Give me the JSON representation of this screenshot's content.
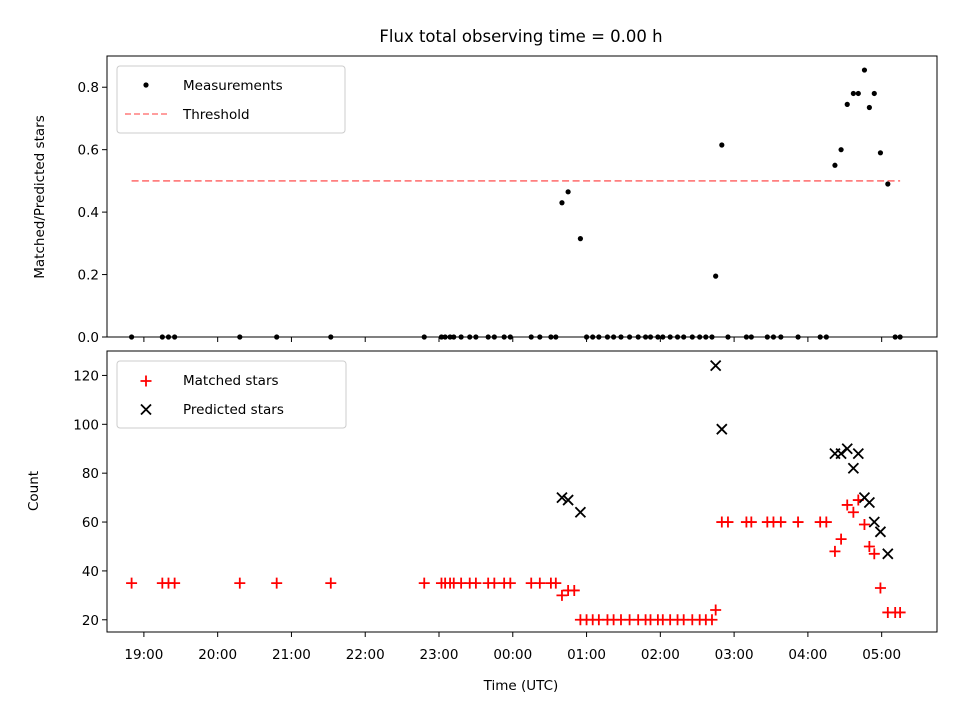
{
  "title": "Flux total observing time = 0.00 h",
  "colors": {
    "measurement": "#000000",
    "threshold": "#ff7f7f",
    "matched": "#ff0000",
    "predicted": "#000000"
  },
  "chart_data": [
    {
      "type": "scatter",
      "ylabel": "Matched/Predicted stars",
      "ylim": [
        0,
        0.9
      ],
      "yticks": [
        0.0,
        0.2,
        0.4,
        0.6,
        0.8
      ],
      "ytick_labels": [
        "0.0",
        "0.2",
        "0.4",
        "0.6",
        "0.8"
      ],
      "legend": {
        "location": "upper left",
        "entries": [
          "Measurements",
          "Threshold"
        ]
      },
      "threshold": {
        "value": 0.5,
        "x_start": "18:50",
        "x_end": "05:15"
      },
      "series": [
        {
          "name": "Measurements",
          "points": [
            [
              "18:50",
              0
            ],
            [
              "19:15",
              0
            ],
            [
              "19:20",
              0
            ],
            [
              "19:25",
              0
            ],
            [
              "20:18",
              0
            ],
            [
              "20:48",
              0
            ],
            [
              "21:32",
              0
            ],
            [
              "22:48",
              0
            ],
            [
              "23:02",
              0
            ],
            [
              "23:05",
              0
            ],
            [
              "23:09",
              0
            ],
            [
              "23:12",
              0
            ],
            [
              "23:18",
              0
            ],
            [
              "23:25",
              0
            ],
            [
              "23:30",
              0
            ],
            [
              "23:40",
              0
            ],
            [
              "23:45",
              0
            ],
            [
              "23:53",
              0
            ],
            [
              "23:58",
              0
            ],
            [
              "00:15",
              0
            ],
            [
              "00:22",
              0
            ],
            [
              "00:31",
              0
            ],
            [
              "00:35",
              0
            ],
            [
              "00:40",
              0.43
            ],
            [
              "00:45",
              0.465
            ],
            [
              "00:55",
              0.315
            ],
            [
              "01:00",
              0
            ],
            [
              "01:05",
              0
            ],
            [
              "01:10",
              0
            ],
            [
              "01:17",
              0
            ],
            [
              "01:22",
              0
            ],
            [
              "01:28",
              0
            ],
            [
              "01:35",
              0
            ],
            [
              "01:42",
              0
            ],
            [
              "01:48",
              0
            ],
            [
              "01:52",
              0
            ],
            [
              "01:58",
              0
            ],
            [
              "02:02",
              0
            ],
            [
              "02:08",
              0
            ],
            [
              "02:14",
              0
            ],
            [
              "02:19",
              0
            ],
            [
              "02:26",
              0
            ],
            [
              "02:32",
              0
            ],
            [
              "02:37",
              0
            ],
            [
              "02:42",
              0
            ],
            [
              "02:45",
              0.195
            ],
            [
              "02:50",
              0.615
            ],
            [
              "02:55",
              0
            ],
            [
              "03:10",
              0
            ],
            [
              "03:14",
              0
            ],
            [
              "03:27",
              0
            ],
            [
              "03:32",
              0
            ],
            [
              "03:38",
              0
            ],
            [
              "03:52",
              0
            ],
            [
              "04:10",
              0
            ],
            [
              "04:15",
              0
            ],
            [
              "04:22",
              0.55
            ],
            [
              "04:27",
              0.6
            ],
            [
              "04:32",
              0.745
            ],
            [
              "04:37",
              0.78
            ],
            [
              "04:41",
              0.78
            ],
            [
              "04:46",
              0.855
            ],
            [
              "04:50",
              0.735
            ],
            [
              "04:54",
              0.78
            ],
            [
              "04:59",
              0.59
            ],
            [
              "05:05",
              0.49
            ],
            [
              "05:11",
              0
            ],
            [
              "05:15",
              0
            ]
          ]
        }
      ]
    },
    {
      "type": "scatter",
      "xlabel": "Time (UTC)",
      "ylabel": "Count",
      "ylim": [
        15,
        130
      ],
      "yticks": [
        20,
        40,
        60,
        80,
        100,
        120
      ],
      "ytick_labels": [
        "20",
        "40",
        "60",
        "80",
        "100",
        "120"
      ],
      "xticks": [
        "19:00",
        "20:00",
        "21:00",
        "22:00",
        "23:00",
        "00:00",
        "01:00",
        "02:00",
        "03:00",
        "04:00",
        "05:00"
      ],
      "xtick_labels": [
        "19:00",
        "20:00",
        "21:00",
        "22:00",
        "23:00",
        "00:00",
        "01:00",
        "02:00",
        "03:00",
        "04:00",
        "05:00"
      ],
      "xlim": [
        "18:30",
        "05:45"
      ],
      "legend": {
        "location": "upper left",
        "entries": [
          "Matched stars",
          "Predicted stars"
        ]
      },
      "series": [
        {
          "name": "Matched stars",
          "points": [
            [
              "18:50",
              35
            ],
            [
              "19:15",
              35
            ],
            [
              "19:20",
              35
            ],
            [
              "19:25",
              35
            ],
            [
              "20:18",
              35
            ],
            [
              "20:48",
              35
            ],
            [
              "21:32",
              35
            ],
            [
              "22:48",
              35
            ],
            [
              "23:02",
              35
            ],
            [
              "23:05",
              35
            ],
            [
              "23:09",
              35
            ],
            [
              "23:12",
              35
            ],
            [
              "23:18",
              35
            ],
            [
              "23:25",
              35
            ],
            [
              "23:30",
              35
            ],
            [
              "23:40",
              35
            ],
            [
              "23:45",
              35
            ],
            [
              "23:53",
              35
            ],
            [
              "23:58",
              35
            ],
            [
              "00:15",
              35
            ],
            [
              "00:22",
              35
            ],
            [
              "00:31",
              35
            ],
            [
              "00:35",
              35
            ],
            [
              "00:40",
              30
            ],
            [
              "00:45",
              32
            ],
            [
              "00:50",
              32
            ],
            [
              "00:55",
              20
            ],
            [
              "01:00",
              20
            ],
            [
              "01:05",
              20
            ],
            [
              "01:10",
              20
            ],
            [
              "01:17",
              20
            ],
            [
              "01:22",
              20
            ],
            [
              "01:28",
              20
            ],
            [
              "01:35",
              20
            ],
            [
              "01:42",
              20
            ],
            [
              "01:48",
              20
            ],
            [
              "01:52",
              20
            ],
            [
              "01:58",
              20
            ],
            [
              "02:02",
              20
            ],
            [
              "02:08",
              20
            ],
            [
              "02:14",
              20
            ],
            [
              "02:19",
              20
            ],
            [
              "02:26",
              20
            ],
            [
              "02:32",
              20
            ],
            [
              "02:37",
              20
            ],
            [
              "02:42",
              20
            ],
            [
              "02:45",
              24
            ],
            [
              "02:50",
              60
            ],
            [
              "02:55",
              60
            ],
            [
              "03:10",
              60
            ],
            [
              "03:14",
              60
            ],
            [
              "03:27",
              60
            ],
            [
              "03:32",
              60
            ],
            [
              "03:38",
              60
            ],
            [
              "03:52",
              60
            ],
            [
              "04:10",
              60
            ],
            [
              "04:15",
              60
            ],
            [
              "04:22",
              48
            ],
            [
              "04:27",
              53
            ],
            [
              "04:32",
              67
            ],
            [
              "04:37",
              64
            ],
            [
              "04:41",
              69
            ],
            [
              "04:46",
              59
            ],
            [
              "04:50",
              50
            ],
            [
              "04:54",
              47
            ],
            [
              "04:59",
              33
            ],
            [
              "05:05",
              23
            ],
            [
              "05:11",
              23
            ],
            [
              "05:15",
              23
            ]
          ]
        },
        {
          "name": "Predicted stars",
          "points": [
            [
              "00:40",
              70
            ],
            [
              "00:45",
              69
            ],
            [
              "00:55",
              64
            ],
            [
              "02:45",
              124
            ],
            [
              "02:50",
              98
            ],
            [
              "04:22",
              88
            ],
            [
              "04:27",
              88
            ],
            [
              "04:32",
              90
            ],
            [
              "04:37",
              82
            ],
            [
              "04:41",
              88
            ],
            [
              "04:46",
              70
            ],
            [
              "04:50",
              68
            ],
            [
              "04:54",
              60
            ],
            [
              "04:59",
              56
            ],
            [
              "05:05",
              47
            ]
          ]
        }
      ]
    }
  ]
}
